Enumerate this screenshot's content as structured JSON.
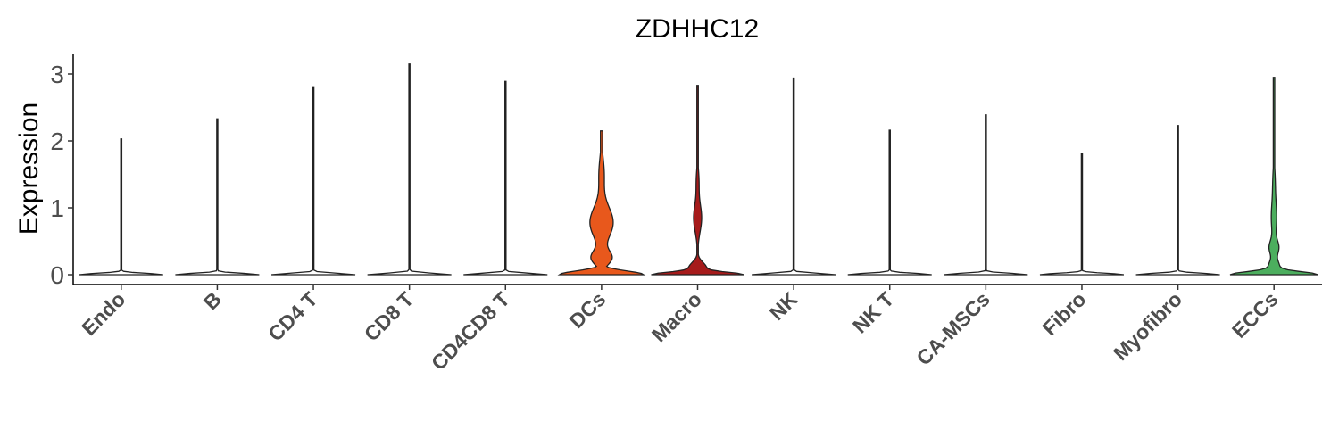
{
  "chart_data": {
    "type": "violin",
    "title": "ZDHHC12",
    "xlabel": "",
    "ylabel": "Expression",
    "ylim": [
      0,
      3.3
    ],
    "yticks": [
      "0",
      "1",
      "2",
      "3"
    ],
    "grid": false,
    "legend": "none",
    "categories": [
      "Endo",
      "B",
      "CD4 T",
      "CD8 T",
      "CD4CD8 T",
      "DCs",
      "Macro",
      "NK",
      "NK T",
      "CA-MSCs",
      "Fibro",
      "Myofibro",
      "ECCs"
    ],
    "max_values": [
      2.03,
      2.33,
      2.81,
      3.15,
      2.89,
      2.15,
      2.83,
      2.94,
      2.16,
      2.39,
      1.81,
      2.23,
      2.95
    ],
    "colors": [
      "#ffffff",
      "#ffffff",
      "#ffffff",
      "#ffffff",
      "#ffffff",
      "#e8581c",
      "#a61b1b",
      "#ffffff",
      "#ffffff",
      "#ffffff",
      "#ffffff",
      "#ffffff",
      "#4cae5e"
    ]
  }
}
